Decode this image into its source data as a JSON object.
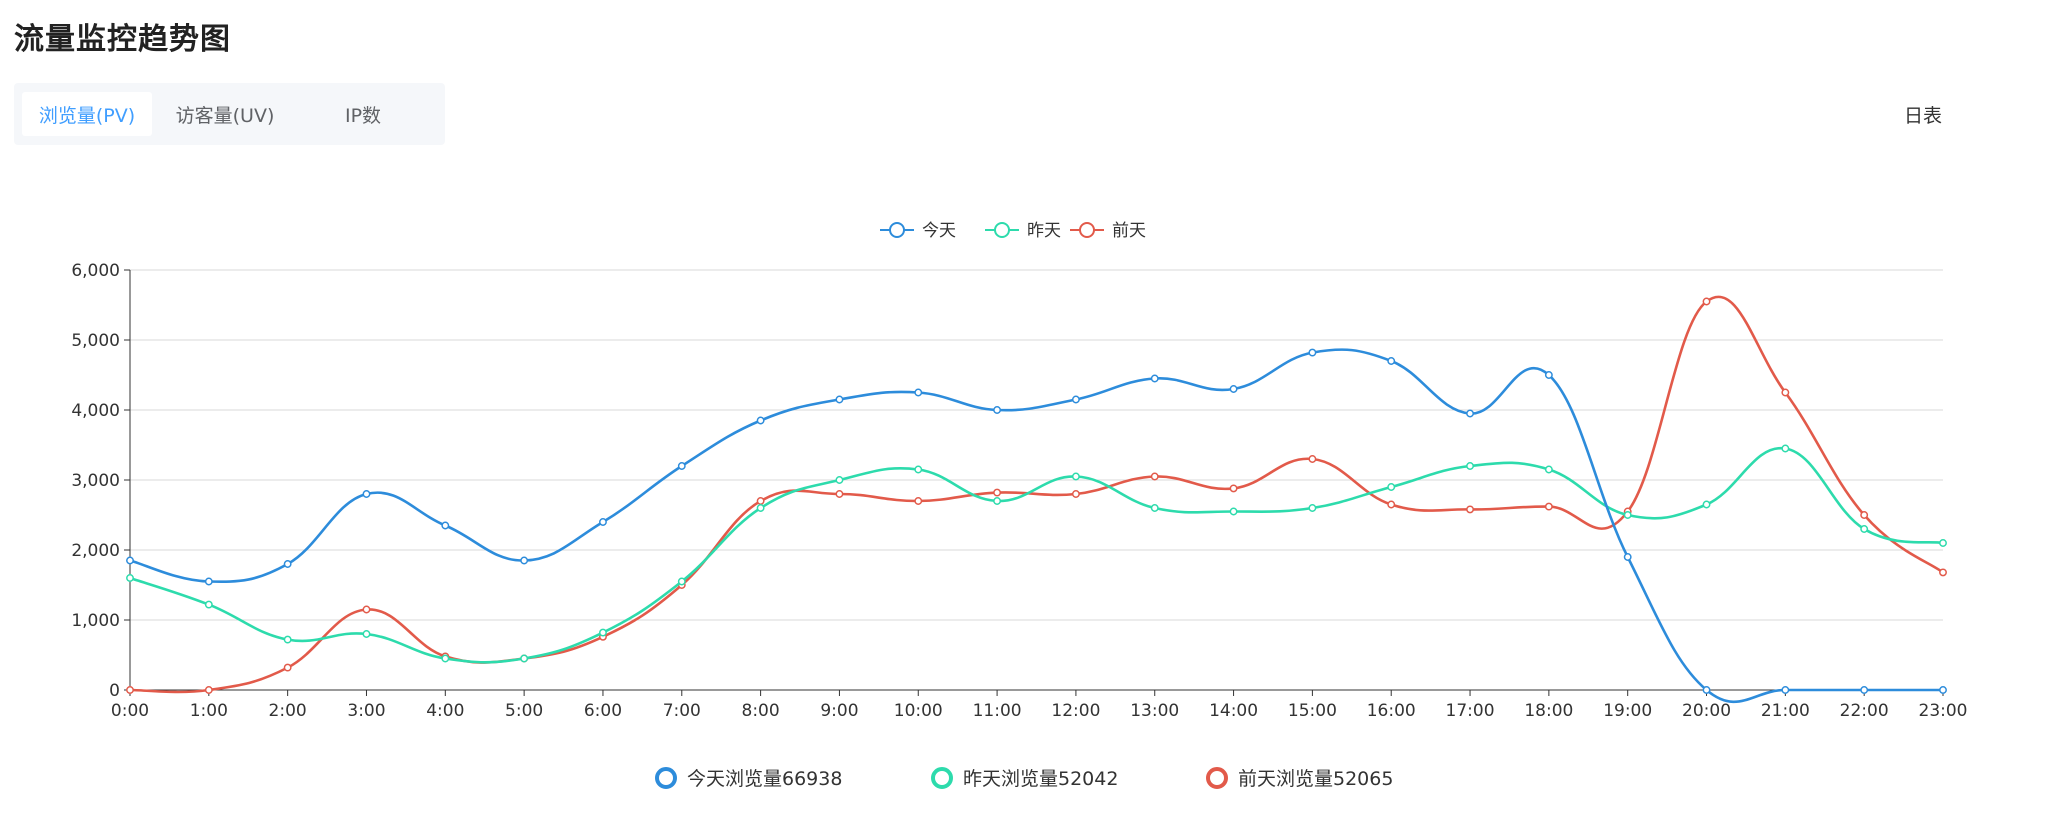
{
  "page": {
    "title": "流量监控趋势图"
  },
  "tabs": [
    {
      "label": "浏览量(PV)",
      "active": true
    },
    {
      "label": "访客量(UV)",
      "active": false
    },
    {
      "label": "IP数",
      "active": false
    }
  ],
  "report_link": "日表",
  "summary": [
    {
      "label": "今天浏览量66938",
      "color": "#2d8cdb"
    },
    {
      "label": "昨天浏览量52042",
      "color": "#2ddbac"
    },
    {
      "label": "前天浏览量52065",
      "color": "#e25a4a"
    }
  ],
  "chart_data": {
    "type": "line",
    "smooth": true,
    "categories": [
      "0:00",
      "1:00",
      "2:00",
      "3:00",
      "4:00",
      "5:00",
      "6:00",
      "7:00",
      "8:00",
      "9:00",
      "10:00",
      "11:00",
      "12:00",
      "13:00",
      "14:00",
      "15:00",
      "16:00",
      "17:00",
      "18:00",
      "19:00",
      "20:00",
      "21:00",
      "22:00",
      "23:00"
    ],
    "ylim": [
      0,
      6000
    ],
    "yticks": [
      0,
      1000,
      2000,
      3000,
      4000,
      5000,
      6000
    ],
    "ytick_labels": [
      "0",
      "1,000",
      "2,000",
      "3,000",
      "4,000",
      "5,000",
      "6,000"
    ],
    "grid": "horizontal",
    "legend_position": "top-center",
    "series": [
      {
        "name": "今天",
        "color": "#2d8cdb",
        "values": [
          1850,
          1550,
          1800,
          2800,
          2350,
          1850,
          2400,
          3200,
          3850,
          4150,
          4250,
          4000,
          4150,
          4450,
          4300,
          4820,
          4700,
          3950,
          4500,
          1900,
          0,
          0,
          0,
          0
        ]
      },
      {
        "name": "昨天",
        "color": "#2ddbac",
        "values": [
          1600,
          1220,
          720,
          800,
          450,
          450,
          820,
          1550,
          2600,
          3000,
          3150,
          2700,
          3050,
          2600,
          2550,
          2600,
          2900,
          3200,
          3150,
          2500,
          2650,
          3450,
          2300,
          2100
        ]
      },
      {
        "name": "前天",
        "color": "#e25a4a",
        "values": [
          0,
          0,
          320,
          1150,
          480,
          450,
          760,
          1500,
          2700,
          2800,
          2700,
          2820,
          2800,
          3050,
          2880,
          3300,
          2650,
          2580,
          2620,
          2550,
          5550,
          4250,
          2500,
          1680
        ]
      }
    ]
  }
}
